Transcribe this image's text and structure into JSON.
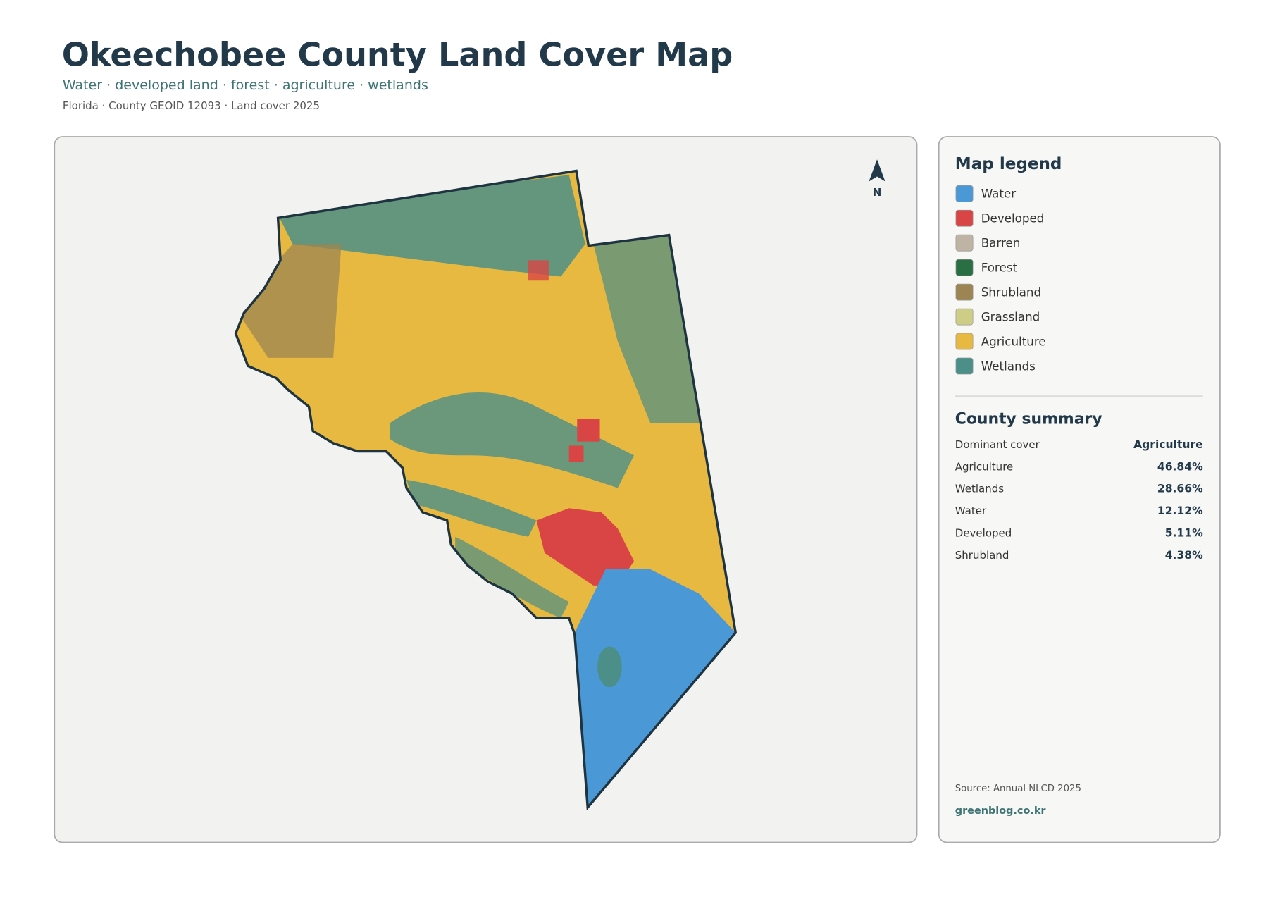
{
  "header": {
    "title": "Okeechobee County Land Cover Map",
    "subtitle": "Water · developed land · forest · agriculture · wetlands",
    "meta": "Florida · County GEOID 12093 · Land cover 2025"
  },
  "map": {
    "north_label": "N"
  },
  "legend": {
    "title": "Map legend",
    "items": [
      {
        "label": "Water",
        "color": "#4a98d6"
      },
      {
        "label": "Developed",
        "color": "#d94545"
      },
      {
        "label": "Barren",
        "color": "#bfb4a3"
      },
      {
        "label": "Forest",
        "color": "#2a6e43"
      },
      {
        "label": "Shrubland",
        "color": "#9c8552"
      },
      {
        "label": "Grassland",
        "color": "#cdcd85"
      },
      {
        "label": "Agriculture",
        "color": "#e8b940"
      },
      {
        "label": "Wetlands",
        "color": "#4b8f88"
      }
    ]
  },
  "summary": {
    "title": "County summary",
    "rows": [
      [
        "Dominant cover",
        "Agriculture"
      ],
      [
        "Agriculture",
        "46.84%"
      ],
      [
        "Wetlands",
        "28.66%"
      ],
      [
        "Water",
        "12.12%"
      ],
      [
        "Developed",
        "5.11%"
      ],
      [
        "Shrubland",
        "4.38%"
      ]
    ]
  },
  "footer": {
    "source": "Source: Annual NLCD 2025",
    "site": "greenblog.co.kr"
  }
}
